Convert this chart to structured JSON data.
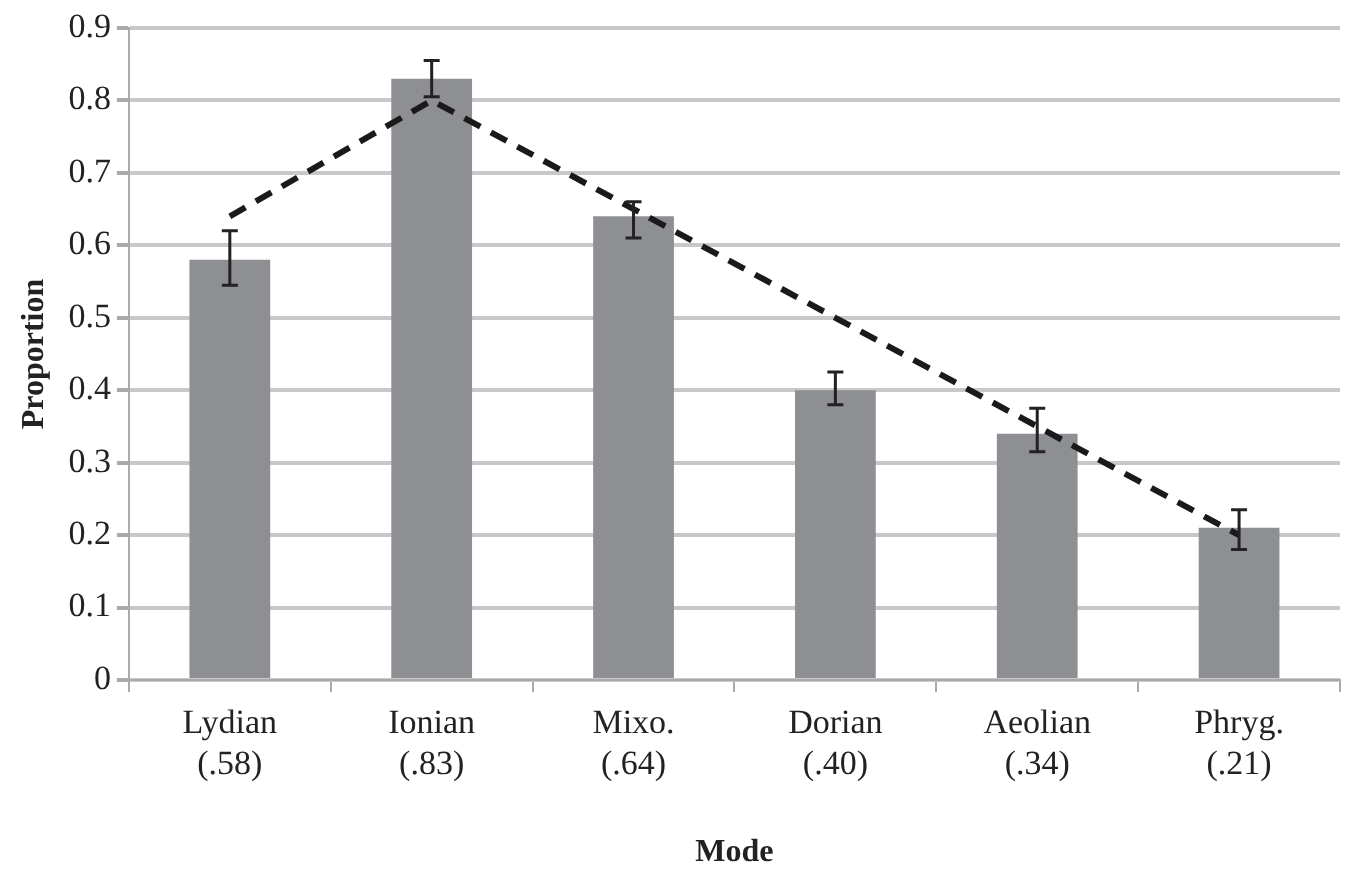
{
  "chart_data": {
    "type": "bar",
    "xlabel": "Mode",
    "ylabel": "Proportion",
    "categories": [
      "Lydian\n(.58)",
      "Ionian\n(.83)",
      "Mixo.\n(.64)",
      "Dorian\n(.40)",
      "Aeolian\n(.34)",
      "Phryg.\n(.21)"
    ],
    "series": [
      {
        "color": "#8e8f93",
        "values": [
          0.58,
          0.83,
          0.64,
          0.4,
          0.34,
          0.21
        ],
        "errors": [
          [
            0.545,
            0.62
          ],
          [
            0.805,
            0.855
          ],
          [
            0.61,
            0.66
          ],
          [
            0.38,
            0.425
          ],
          [
            0.315,
            0.375
          ],
          [
            0.18,
            0.235
          ]
        ]
      },
      {
        "type": "line",
        "color": "#1a1a1a",
        "line_style": "dashed",
        "marker": "none",
        "values": [
          0.64,
          0.8,
          0.65,
          0.5,
          0.35,
          0.2
        ]
      }
    ],
    "ylim": [
      0,
      0.9
    ],
    "yticks": [
      0,
      0.1,
      0.2,
      0.3,
      0.4,
      0.5,
      0.6,
      0.7,
      0.8,
      0.9
    ],
    "grid": "y",
    "legend": false
  }
}
